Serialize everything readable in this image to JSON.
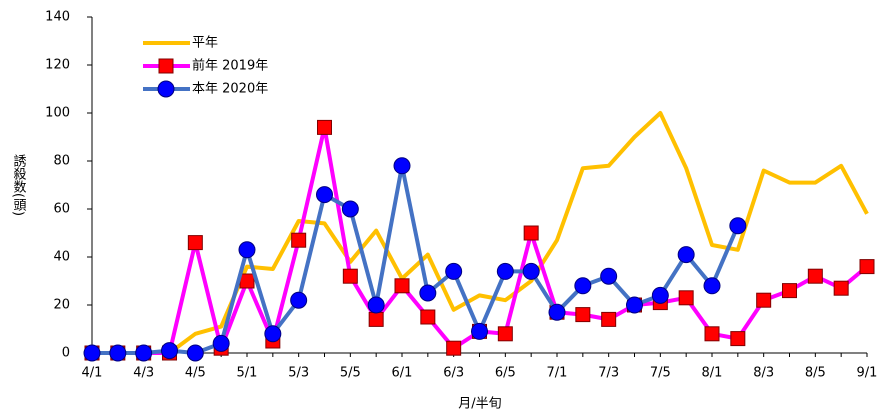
{
  "chart_data": {
    "type": "line",
    "x_label": "月/半旬",
    "y_label": "誘殺数(頭)",
    "categories": [
      "4/1",
      null,
      "4/3",
      null,
      "4/5",
      null,
      "5/1",
      null,
      "5/3",
      null,
      "5/5",
      null,
      "6/1",
      null,
      "6/3",
      null,
      "6/5",
      null,
      "7/1",
      null,
      "7/3",
      null,
      "7/5",
      null,
      "8/1",
      null,
      "8/3",
      null,
      "8/5",
      null,
      "9/1"
    ],
    "ylim": [
      0,
      140
    ],
    "yticks": [
      0,
      20,
      40,
      60,
      80,
      100,
      120,
      140
    ],
    "grid": false,
    "legend": "upper left",
    "series": [
      {
        "name": "平年",
        "color": "#FFC000",
        "marker": "none",
        "values": [
          0,
          0,
          0,
          0,
          8,
          11,
          36,
          35,
          55,
          54,
          38,
          51,
          31,
          41,
          18,
          24,
          22,
          30,
          47,
          77,
          78,
          90,
          100,
          77,
          45,
          43,
          76,
          71,
          71,
          78,
          58
        ]
      },
      {
        "name": "前年 2019年",
        "color": "#FF00FF",
        "marker": "square",
        "marker_color": "#FF0000",
        "values": [
          0,
          0,
          0,
          0,
          46,
          2,
          30,
          5,
          47,
          94,
          32,
          14,
          28,
          15,
          2,
          9,
          8,
          50,
          17,
          16,
          14,
          20,
          21,
          23,
          8,
          6,
          22,
          26,
          32,
          27,
          36
        ]
      },
      {
        "name": "本年 2020年",
        "color": "#4472C4",
        "marker": "circle",
        "marker_color": "#0000FF",
        "values": [
          0,
          0,
          0,
          1,
          0,
          4,
          43,
          8,
          22,
          66,
          60,
          20,
          78,
          25,
          34,
          9,
          34,
          34,
          17,
          28,
          32,
          20,
          24,
          41,
          28,
          53,
          null,
          null,
          null,
          null,
          null
        ]
      }
    ]
  }
}
